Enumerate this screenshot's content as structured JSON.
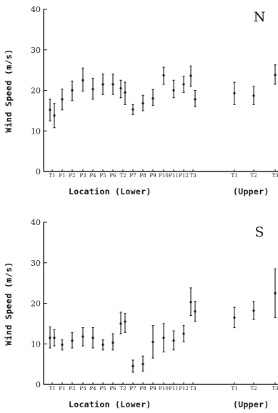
{
  "chart_data": [
    {
      "type": "scatter",
      "title": "N",
      "ylabel": "Wind Speed (m/s)",
      "xlabel_lower": "Location (Lower)",
      "xlabel_upper": "(Upper)",
      "ylim": [
        0,
        40
      ],
      "yticks": [
        0,
        10,
        20,
        30,
        40
      ],
      "categories": [
        "T1",
        "P1",
        "P2",
        "P3",
        "P4",
        "P5",
        "P6",
        "T2",
        "P7",
        "P8",
        "P9",
        "P10",
        "P11",
        "P12",
        "T3",
        "T1",
        "T2",
        "T3"
      ],
      "points": [
        {
          "cat": 0,
          "y": 15.2,
          "lo": 12.5,
          "hi": 17.8
        },
        {
          "cat": 0,
          "y": 13.8,
          "lo": 10.8,
          "hi": 16.8
        },
        {
          "cat": 1,
          "y": 17.8,
          "lo": 15.2,
          "hi": 20.3
        },
        {
          "cat": 2,
          "y": 20.0,
          "lo": 17.5,
          "hi": 22.3
        },
        {
          "cat": 3,
          "y": 22.5,
          "lo": 19.8,
          "hi": 25.5
        },
        {
          "cat": 4,
          "y": 20.3,
          "lo": 17.8,
          "hi": 23.0
        },
        {
          "cat": 5,
          "y": 21.5,
          "lo": 19.0,
          "hi": 24.0
        },
        {
          "cat": 6,
          "y": 21.5,
          "lo": 19.0,
          "hi": 24.0
        },
        {
          "cat": 7,
          "y": 20.5,
          "lo": 18.2,
          "hi": 22.5
        },
        {
          "cat": 7,
          "y": 19.5,
          "lo": 16.5,
          "hi": 22.0
        },
        {
          "cat": 8,
          "y": 15.3,
          "lo": 14.0,
          "hi": 16.5
        },
        {
          "cat": 9,
          "y": 16.8,
          "lo": 15.0,
          "hi": 18.8
        },
        {
          "cat": 10,
          "y": 18.0,
          "lo": 16.3,
          "hi": 20.2
        },
        {
          "cat": 11,
          "y": 23.7,
          "lo": 21.5,
          "hi": 25.7
        },
        {
          "cat": 12,
          "y": 20.0,
          "lo": 18.2,
          "hi": 22.5
        },
        {
          "cat": 13,
          "y": 21.5,
          "lo": 19.5,
          "hi": 23.5
        },
        {
          "cat": 14,
          "y": 23.6,
          "lo": 21.0,
          "hi": 26.0
        },
        {
          "cat": 14,
          "y": 17.8,
          "lo": 16.0,
          "hi": 20.0
        },
        {
          "cat": 15,
          "y": 19.3,
          "lo": 16.5,
          "hi": 22.0
        },
        {
          "cat": 16,
          "y": 18.7,
          "lo": 16.5,
          "hi": 21.0
        },
        {
          "cat": 17,
          "y": 23.8,
          "lo": 21.5,
          "hi": 26.3
        }
      ]
    },
    {
      "type": "scatter",
      "title": "S",
      "ylabel": "Wind Speed (m/s)",
      "xlabel_lower": "Location (Lower)",
      "xlabel_upper": "(Upper)",
      "ylim": [
        0,
        40
      ],
      "yticks": [
        0,
        10,
        20,
        30,
        40
      ],
      "categories": [
        "T1",
        "P1",
        "P2",
        "P3",
        "P4",
        "P5",
        "P6",
        "T2",
        "P7",
        "P8",
        "P9",
        "P10",
        "P11",
        "P12",
        "T3",
        "T1",
        "T2",
        "T3"
      ],
      "points": [
        {
          "cat": 0,
          "y": 11.5,
          "lo": 9.0,
          "hi": 14.2
        },
        {
          "cat": 0,
          "y": 11.5,
          "lo": 9.5,
          "hi": 13.5
        },
        {
          "cat": 1,
          "y": 9.8,
          "lo": 8.5,
          "hi": 11.0
        },
        {
          "cat": 2,
          "y": 10.8,
          "lo": 9.0,
          "hi": 12.8
        },
        {
          "cat": 3,
          "y": 11.8,
          "lo": 9.5,
          "hi": 14.0
        },
        {
          "cat": 4,
          "y": 11.5,
          "lo": 9.0,
          "hi": 14.0
        },
        {
          "cat": 5,
          "y": 9.8,
          "lo": 8.5,
          "hi": 11.0
        },
        {
          "cat": 6,
          "y": 10.3,
          "lo": 8.5,
          "hi": 12.5
        },
        {
          "cat": 7,
          "y": 15.0,
          "lo": 12.5,
          "hi": 17.8
        },
        {
          "cat": 7,
          "y": 15.5,
          "lo": 12.8,
          "hi": 17.5
        },
        {
          "cat": 8,
          "y": 4.5,
          "lo": 3.0,
          "hi": 6.0
        },
        {
          "cat": 9,
          "y": 5.0,
          "lo": 3.3,
          "hi": 7.0
        },
        {
          "cat": 10,
          "y": 10.5,
          "lo": 6.5,
          "hi": 14.5
        },
        {
          "cat": 11,
          "y": 11.5,
          "lo": 8.0,
          "hi": 15.0
        },
        {
          "cat": 12,
          "y": 10.8,
          "lo": 8.5,
          "hi": 13.2
        },
        {
          "cat": 13,
          "y": 12.5,
          "lo": 10.5,
          "hi": 14.5
        },
        {
          "cat": 14,
          "y": 20.3,
          "lo": 17.0,
          "hi": 23.8
        },
        {
          "cat": 14,
          "y": 18.0,
          "lo": 15.5,
          "hi": 20.5
        },
        {
          "cat": 15,
          "y": 16.5,
          "lo": 14.0,
          "hi": 19.0
        },
        {
          "cat": 16,
          "y": 18.2,
          "lo": 16.0,
          "hi": 20.5
        },
        {
          "cat": 17,
          "y": 22.5,
          "lo": 16.5,
          "hi": 28.5
        }
      ]
    }
  ]
}
